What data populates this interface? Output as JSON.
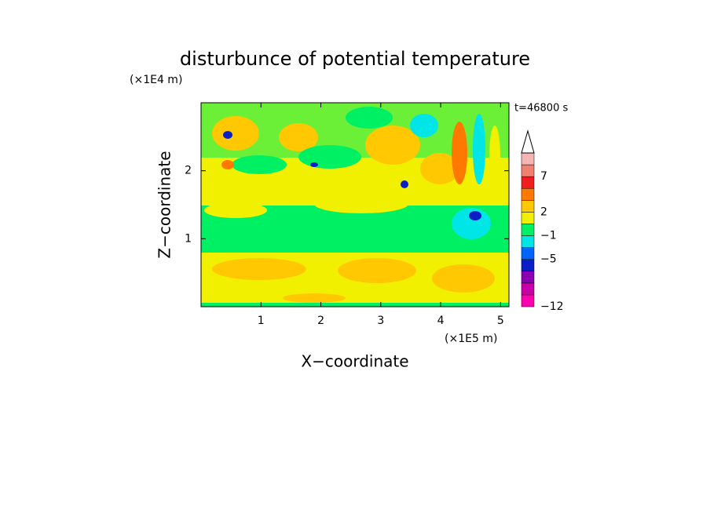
{
  "chart_data": {
    "type": "contour",
    "title": "disturbunce of potential temperature",
    "time_label": "t=46800 s",
    "x_label": "X−coordinate",
    "x_unit": "(×1E5 m)",
    "y_label": "Z−coordinate",
    "y_unit": "(×1E4 m)",
    "xlim": [
      0,
      5.14
    ],
    "xticks": [
      1,
      2,
      3,
      4,
      5
    ],
    "ylim": [
      0,
      3
    ],
    "yticks": [
      1,
      2
    ],
    "colorbar": {
      "colors": [
        "#ff00b0",
        "#c800a8",
        "#8c00b4",
        "#0a1ec8",
        "#0064ff",
        "#00e6e6",
        "#00f064",
        "#f0f000",
        "#ffc800",
        "#ff7800",
        "#f01e1e",
        "#f08070",
        "#f5b4b4"
      ],
      "levels": [
        {
          "value": -12,
          "label": "−12"
        },
        null,
        null,
        null,
        {
          "value": -5,
          "label": "−5"
        },
        null,
        {
          "value": -1,
          "label": "−1"
        },
        null,
        2,
        null,
        null,
        7,
        null,
        null
      ]
    }
  }
}
